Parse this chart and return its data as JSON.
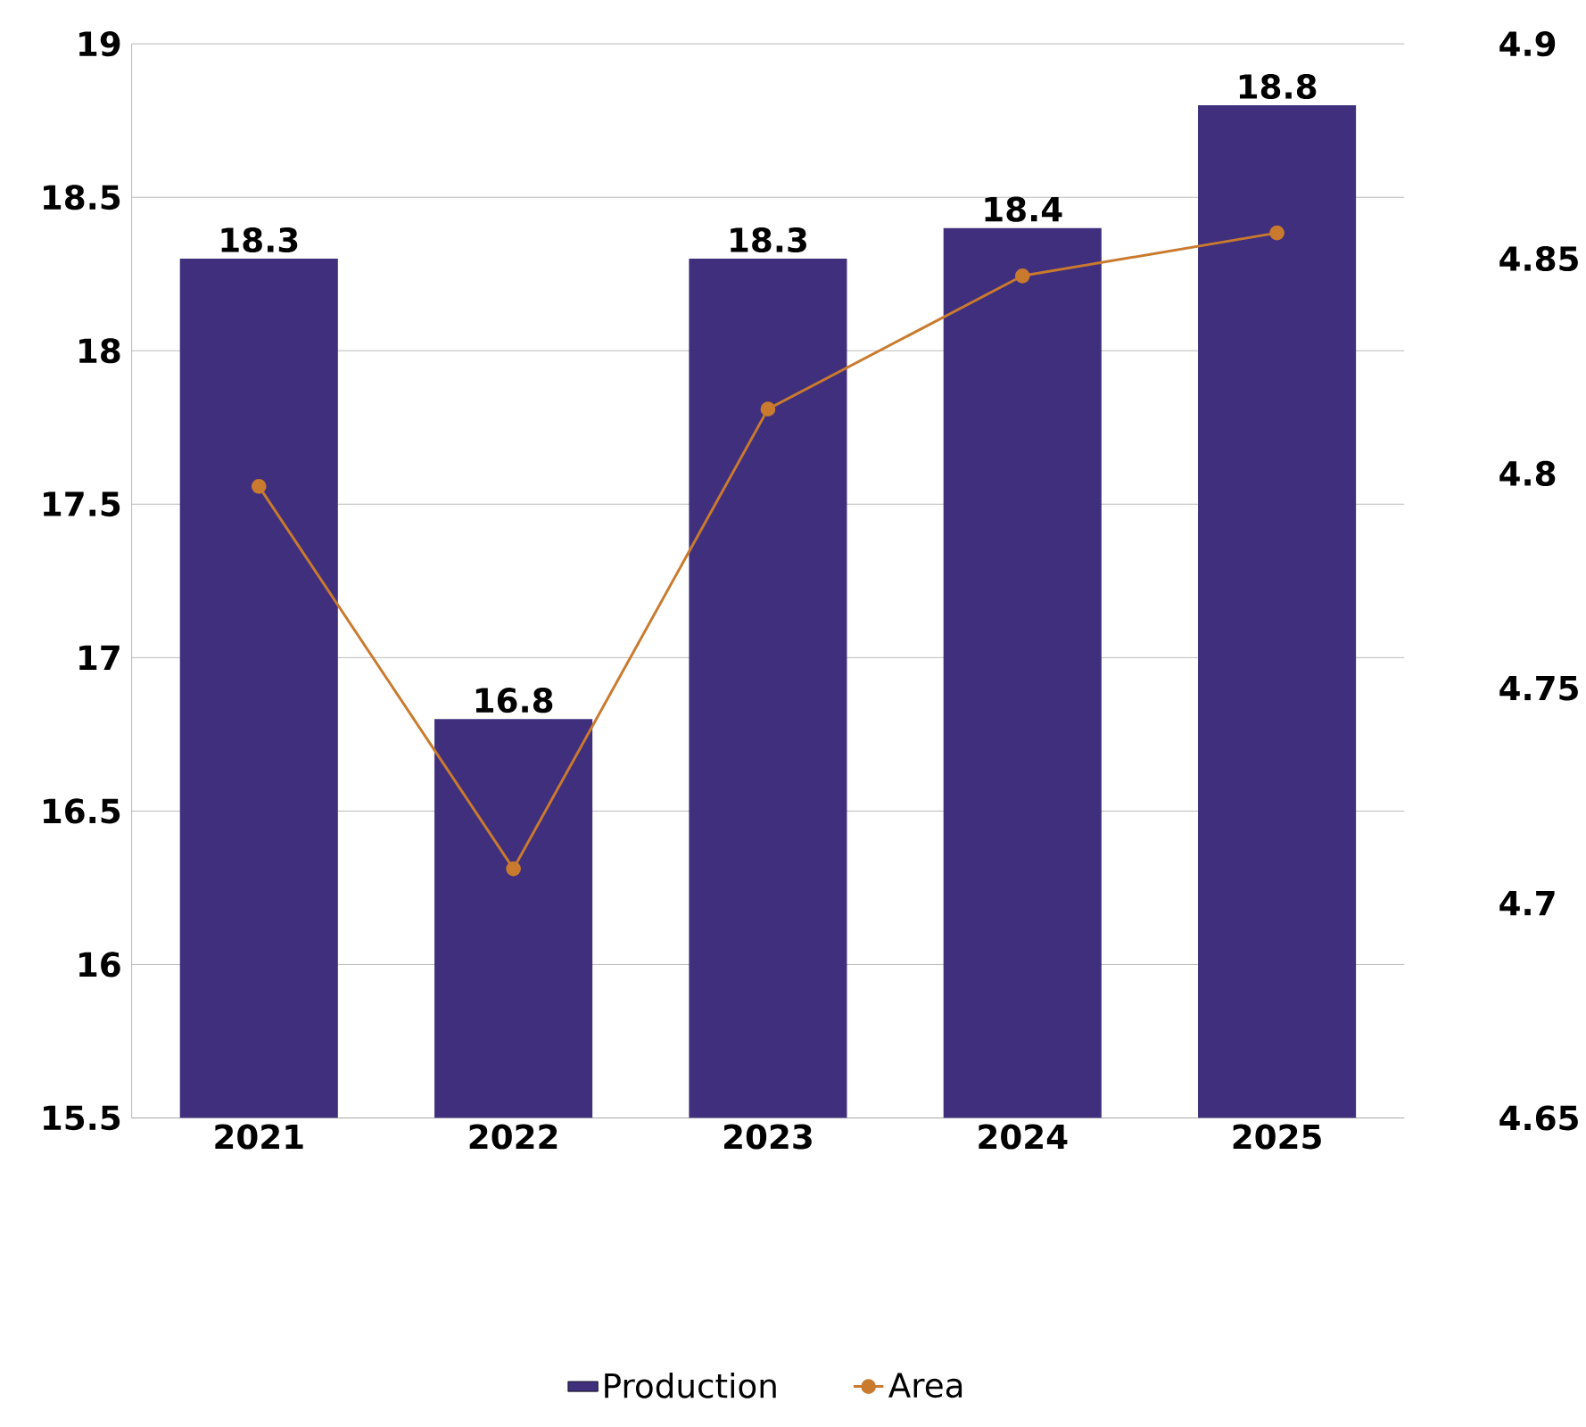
{
  "chart_data": {
    "type": "bar",
    "categories": [
      "2021",
      "2022",
      "2023",
      "2024",
      "2025"
    ],
    "series": [
      {
        "name": "Production",
        "color": "#3f2f7d",
        "values": [
          18.3,
          16.8,
          18.3,
          18.4,
          18.8
        ],
        "value_labels": [
          "18.3",
          "16.8",
          "18.3",
          "18.4",
          "18.8"
        ]
      },
      {
        "name": "Area",
        "type": "line",
        "axis": "y2",
        "color": "#c97a2e",
        "values": [
          4.797,
          4.708,
          4.815,
          4.846,
          4.856
        ]
      }
    ],
    "ylim": [
      15.5,
      19
    ],
    "yticks": [
      15.5,
      16,
      16.5,
      17,
      17.5,
      18,
      18.5,
      19
    ],
    "y2lim": [
      4.65,
      4.9
    ],
    "y2ticks": [
      4.65,
      4.7,
      4.75,
      4.8,
      4.85,
      4.9
    ],
    "grid": "y",
    "legend": "bottom",
    "marker": "circle",
    "line_style": "solid"
  }
}
